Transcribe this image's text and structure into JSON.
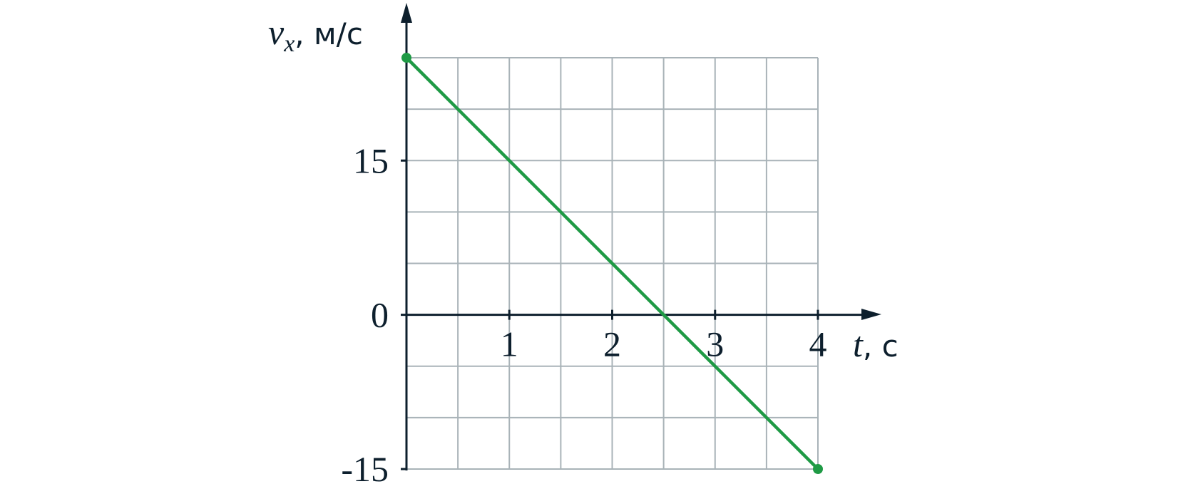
{
  "chart_data": {
    "type": "line",
    "x_label": {
      "symbol": "t",
      "unit": ", с"
    },
    "y_label": {
      "symbol": "v",
      "subscript": "x",
      "unit": ", м/с"
    },
    "x": [
      0,
      4
    ],
    "series": [
      {
        "color": "#1f9a45",
        "values": [
          25,
          -15
        ]
      }
    ],
    "xlim": [
      0,
      4
    ],
    "ylim": [
      -15,
      25
    ],
    "xticks": [
      1,
      2,
      3,
      4
    ],
    "yticks": [
      -15,
      0,
      15
    ],
    "xgrid": [
      0,
      0.5,
      1,
      1.5,
      2,
      2.5,
      3,
      3.5,
      4
    ],
    "ygrid": [
      -15,
      -10,
      -5,
      0,
      5,
      10,
      15,
      20,
      25
    ],
    "grid": true
  }
}
